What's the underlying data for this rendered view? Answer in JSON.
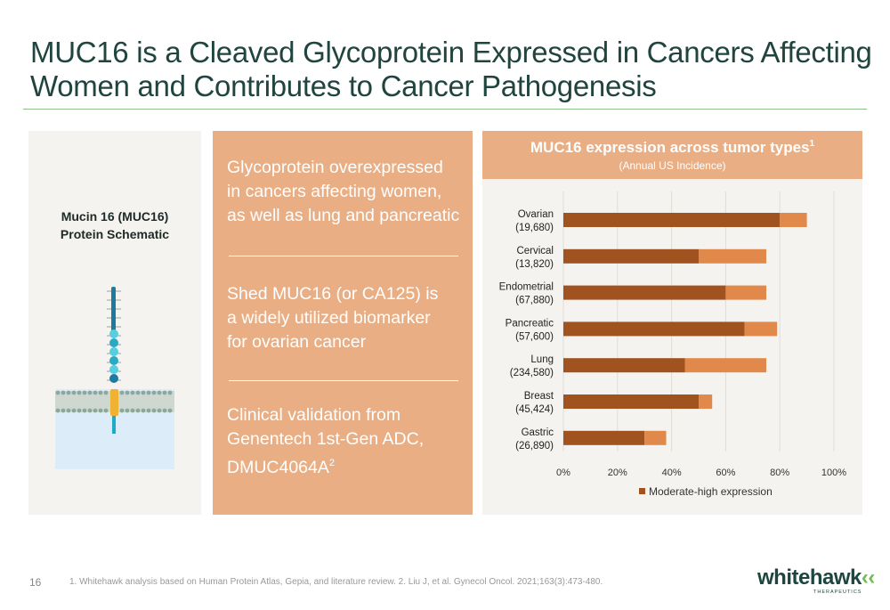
{
  "slide": {
    "title_line1": "MUC16 is a Cleaved Glycoprotein Expressed in Cancers Affecting",
    "title_line2": "Women and Contributes to Cancer Pathogenesis",
    "page_number": "16",
    "footnote": "1. Whitehawk analysis based on Human Protein Atlas, Gepia, and literature review. 2. Liu J, et al. Gynecol Oncol. 2021;163(3):473-480."
  },
  "schematic": {
    "title_line1": "Mucin 16 (MUC16)",
    "title_line2": "Protein Schematic"
  },
  "points": [
    {
      "lines": [
        "Glycoprotein overexpressed",
        "in cancers affecting women,",
        "as well as lung and pancreatic"
      ]
    },
    {
      "lines": [
        "Shed MUC16 (or CA125) is",
        "a widely utilized biomarker",
        "for ovarian cancer"
      ]
    },
    {
      "lines": [
        "Clinical validation from",
        "Genentech 1st-Gen ADC,",
        "DMUC4064A"
      ],
      "superscript": "2"
    }
  ],
  "logo": {
    "word": "whitehawk",
    "mark": "‹‹",
    "sub": "THERAPEUTICS"
  },
  "colors": {
    "title": "#20443e",
    "accent_panel": "#e9ae84",
    "bar_dark": "#a0521f",
    "bar_light": "#e0894a",
    "divider_green": "#8fc08a",
    "logo_green": "#6cc04a"
  },
  "chart_data": {
    "type": "bar",
    "orientation": "horizontal",
    "stacked": true,
    "title": "MUC16 expression across tumor types",
    "title_superscript": "1",
    "subtitle": "(Annual US Incidence)",
    "categories": [
      {
        "name": "Ovarian",
        "incidence": "(19,680)"
      },
      {
        "name": "Cervical",
        "incidence": "(13,820)"
      },
      {
        "name": "Endometrial",
        "incidence": "(67,880)"
      },
      {
        "name": "Pancreatic",
        "incidence": "(57,600)"
      },
      {
        "name": "Lung",
        "incidence": "(234,580)"
      },
      {
        "name": "Breast",
        "incidence": "(45,424)"
      },
      {
        "name": "Gastric",
        "incidence": "(26,890)"
      }
    ],
    "series": [
      {
        "name": "Moderate-high expression",
        "color": "#a0521f",
        "values": [
          80,
          50,
          60,
          67,
          45,
          50,
          30
        ]
      },
      {
        "color": "#e0894a",
        "values": [
          10,
          25,
          15,
          12,
          30,
          5,
          8
        ]
      }
    ],
    "xlim": [
      0,
      100
    ],
    "x_ticks": [
      "0%",
      "20%",
      "40%",
      "60%",
      "80%",
      "100%"
    ],
    "grid": true,
    "legend": "bottom"
  }
}
